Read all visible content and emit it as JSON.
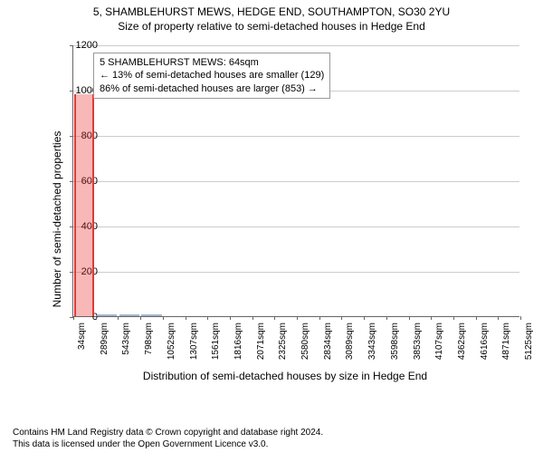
{
  "title_main": "5, SHAMBLEHURST MEWS, HEDGE END, SOUTHAMPTON, SO30 2YU",
  "title_sub": "Size of property relative to semi-detached houses in Hedge End",
  "ylabel": "Number of semi-detached properties",
  "xlabel": "Distribution of semi-detached houses by size in Hedge End",
  "info_box": {
    "line1": "5 SHAMBLEHURST MEWS: 64sqm",
    "line2": "← 13% of semi-detached houses are smaller (129)",
    "line3": "86% of semi-detached houses are larger (853) →"
  },
  "footer": {
    "line1": "Contains HM Land Registry data © Crown copyright and database right 2024.",
    "line2": "This data is licensed under the Open Government Licence v3.0."
  },
  "chart": {
    "type": "bar",
    "background_color": "#ffffff",
    "grid_color": "#cccccc",
    "axis_color": "#666666",
    "highlight_color": "#ee3333",
    "bar_color": "#cbd6e4",
    "bar_border": "#9fb4cf",
    "ylim": [
      0,
      1200
    ],
    "ytick_step": 200,
    "yticks": [
      0,
      200,
      400,
      600,
      800,
      1000,
      1200
    ],
    "xticks": [
      "34sqm",
      "289sqm",
      "543sqm",
      "798sqm",
      "1052sqm",
      "1307sqm",
      "1561sqm",
      "1816sqm",
      "2071sqm",
      "2325sqm",
      "2580sqm",
      "2834sqm",
      "3089sqm",
      "3343sqm",
      "3598sqm",
      "3853sqm",
      "4107sqm",
      "4362sqm",
      "4616sqm",
      "4871sqm",
      "5125sqm"
    ],
    "highlight_index": 0,
    "bars": [
      {
        "x": 0,
        "value": 980,
        "highlight": true
      },
      {
        "x": 1,
        "value": 8
      },
      {
        "x": 2,
        "value": 4
      },
      {
        "x": 3,
        "value": 3
      }
    ]
  }
}
